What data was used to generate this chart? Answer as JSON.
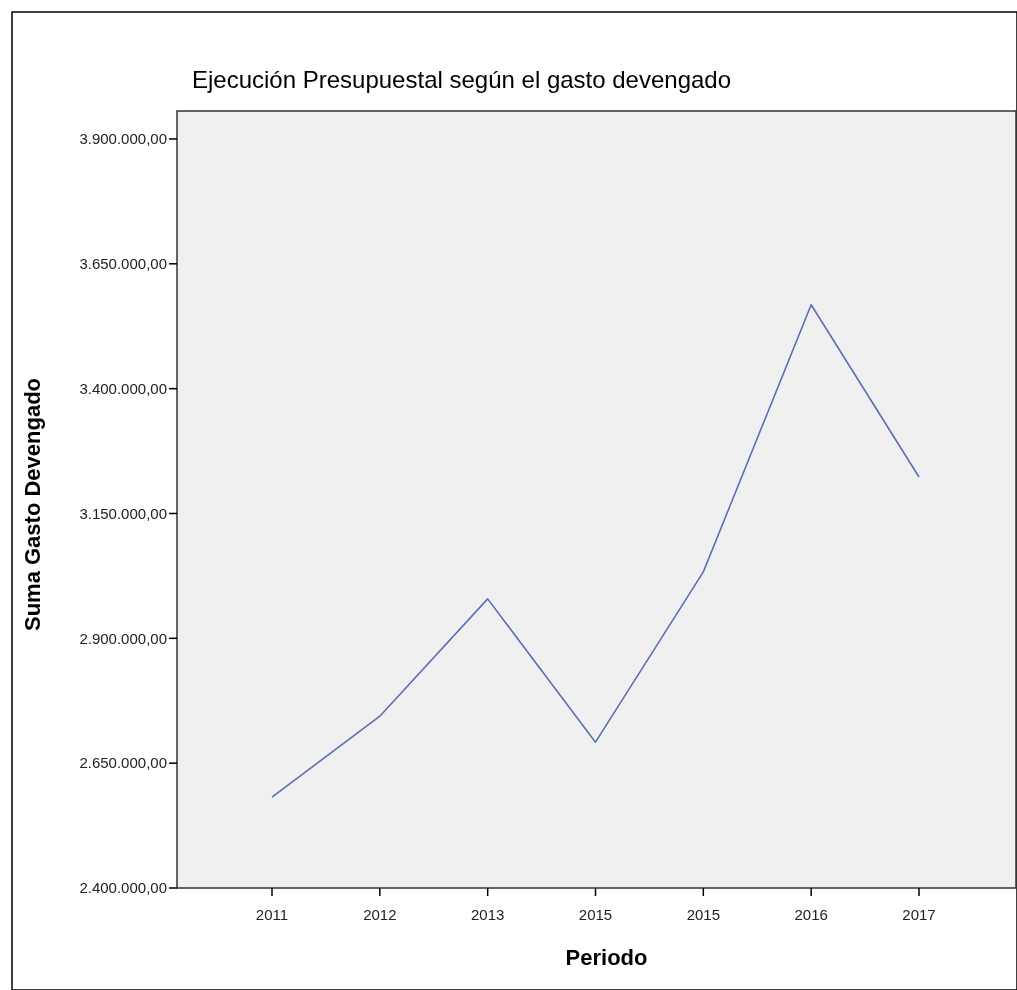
{
  "chart_data": {
    "type": "line",
    "title": "Ejecución Presupuestal según el gasto devengado",
    "xlabel": "Periodo",
    "ylabel": "Suma Gasto Devengado",
    "categories": [
      "2011",
      "2012",
      "2013",
      "2015",
      "2015",
      "2016",
      "2017"
    ],
    "series": [
      {
        "color": "#5b6fb8",
        "values": [
          2582000,
          2744000,
          2979000,
          2692000,
          3033000,
          3568000,
          3223000
        ]
      }
    ],
    "ylim": [
      2400000,
      3956000
    ],
    "yticks": [
      {
        "value": 2400000,
        "label": "2.400.000,00"
      },
      {
        "value": 2650000,
        "label": "2.650.000,00"
      },
      {
        "value": 2900000,
        "label": "2.900.000,00"
      },
      {
        "value": 3150000,
        "label": "3.150.000,00"
      },
      {
        "value": 3400000,
        "label": "3.400.000,00"
      },
      {
        "value": 3650000,
        "label": "3.650.000,00"
      },
      {
        "value": 3900000,
        "label": "3.900.000,00"
      }
    ],
    "grid": false,
    "marker": "none",
    "line_style": "solid"
  }
}
